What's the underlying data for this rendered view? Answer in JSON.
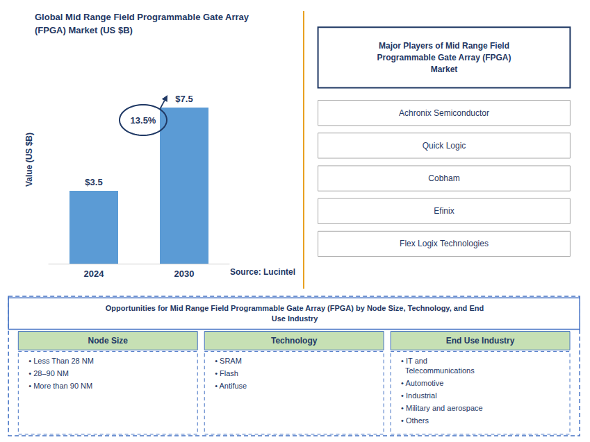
{
  "chart_data": {
    "type": "bar",
    "title": "Global Mid Range Field Programmable Gate Array\n(FPGA) Market (US $B)",
    "categories": [
      "2024",
      "2030"
    ],
    "values": [
      3.5,
      7.5
    ],
    "value_labels": [
      "$3.5",
      "$7.5"
    ],
    "data_labels": true,
    "color": "#5B9BD5",
    "y_label": "Value (US $B)",
    "ylim": [
      0,
      10
    ],
    "tick_labels": "x",
    "grid": false,
    "cagr_label": "13.5%",
    "source": "Source: Lucintel",
    "side_panel": {
      "title": "Major Players of Mid Range Field\nProgrammable Gate Array (FPGA)\nMarket",
      "items": [
        "Achronix Semiconductor",
        "Quick Logic",
        "Cobham",
        "Efinix",
        "Flex Logix Technologies"
      ]
    },
    "bottom_panel": {
      "title": "Opportunities for Mid Range Field Programmable Gate Array (FPGA) by Node Size, Technology, and End\nUse Industry",
      "columns": [
        {
          "header": "Node Size",
          "items": [
            "• Less Than 28 NM",
            "• 28–90 NM",
            "• More than 90 NM"
          ]
        },
        {
          "header": "Technology",
          "items": [
            "• SRAM",
            "• Flash",
            "• Antifuse"
          ]
        },
        {
          "header": "End Use Industry",
          "items": [
            "• IT and\n  Telecommunications",
            "• Automotive",
            "• Industrial",
            "• Military and aerospace",
            "• Others"
          ]
        }
      ]
    }
  }
}
